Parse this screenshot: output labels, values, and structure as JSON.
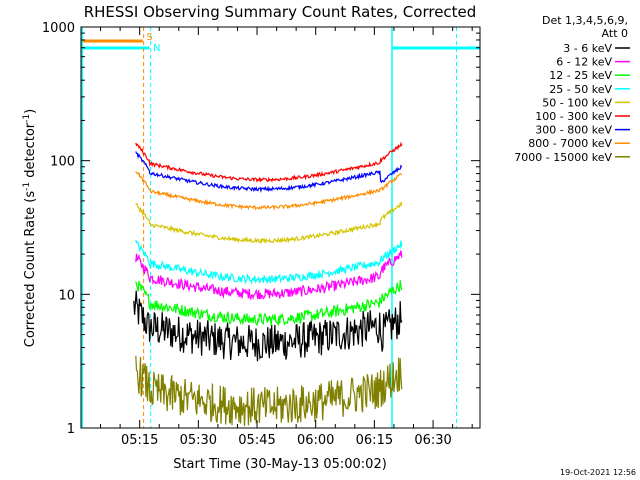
{
  "chart_data": {
    "type": "line",
    "title": "RHESSI Observing Summary Count Rates, Corrected",
    "xlabel": "Start Time (30-May-13 05:00:02)",
    "ylabel_main": "Corrected Count Rate (s",
    "ylabel_sup1": "-1",
    "ylabel_mid": " detector",
    "ylabel_sup2": "-1",
    "ylabel_end": ")",
    "yscale": "log",
    "ylim": [
      1,
      1000
    ],
    "xlim_minutes": [
      0,
      102
    ],
    "x_ticks": [
      {
        "m": 15,
        "label": "05:15"
      },
      {
        "m": 30,
        "label": "05:30"
      },
      {
        "m": 45,
        "label": "05:45"
      },
      {
        "m": 60,
        "label": "06:00"
      },
      {
        "m": 75,
        "label": "06:15"
      },
      {
        "m": 90,
        "label": "06:30"
      }
    ],
    "y_ticks": [
      {
        "v": 1,
        "label": "1"
      },
      {
        "v": 10,
        "label": "10"
      },
      {
        "v": 100,
        "label": "100"
      },
      {
        "v": 1000,
        "label": "1000"
      }
    ],
    "legend_header": [
      "Det 1,3,4,5,6,9,",
      "Att 0"
    ],
    "series": [
      {
        "name": "3 - 6 keV",
        "color": "#000000",
        "start": 13.5,
        "level": 6.0,
        "end": 5.0,
        "noise": 0.28
      },
      {
        "name": "6 - 12 keV",
        "color": "#ff00ff",
        "start": 14.0,
        "level": 14.0,
        "end": 15.0,
        "noise": 0.08
      },
      {
        "name": "12 - 25 keV",
        "color": "#00ff00",
        "start": 14.0,
        "level": 9.0,
        "end": 9.0,
        "noise": 0.09
      },
      {
        "name": "25 - 50 keV",
        "color": "#00ffff",
        "start": 14.0,
        "level": 18.0,
        "end": 18.0,
        "noise": 0.06
      },
      {
        "name": "50 - 100 keV",
        "color": "#d4c400",
        "start": 14.0,
        "level": 35.0,
        "end": 36.0,
        "noise": 0.03
      },
      {
        "name": "100 - 300 keV",
        "color": "#ff0000",
        "start": 14.0,
        "level": 100.0,
        "end": 100.0,
        "noise": 0.025
      },
      {
        "name": "300 - 800 keV",
        "color": "#0000ff",
        "start": 14.0,
        "level": 85.0,
        "end": 68.0,
        "noise": 0.025
      },
      {
        "name": "800 - 7000 keV",
        "color": "#ff8c00",
        "start": 14.0,
        "level": 62.0,
        "end": 60.0,
        "noise": 0.025
      },
      {
        "name": "7000 - 15000 keV",
        "color": "#808000",
        "start": 14.0,
        "level": 2.0,
        "end": 2.0,
        "noise": 0.3
      }
    ],
    "flags": {
      "S_label": "S",
      "N_label": "N",
      "S_color": "#ff8c00",
      "N_color": "#00ffff"
    },
    "timestamp": "19-Oct-2021 12:56"
  }
}
